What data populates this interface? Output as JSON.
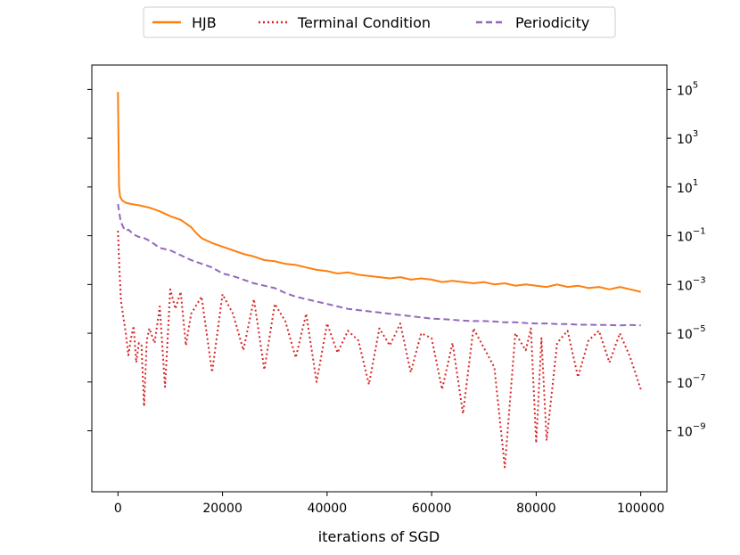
{
  "chart_data": {
    "type": "line",
    "title": "",
    "xlabel": "iterations of SGD",
    "ylabel": "",
    "xlim": [
      -5000,
      105000
    ],
    "ylim_log10": [
      -11.5,
      6.0
    ],
    "y_axis_side": "right",
    "y_scale": "log",
    "legend_position": "top-center",
    "x_ticks": [
      0,
      20000,
      40000,
      60000,
      80000,
      100000
    ],
    "x_tick_labels": [
      "0",
      "20000",
      "40000",
      "60000",
      "80000",
      "100000"
    ],
    "y_ticks": [
      {
        "base": "10",
        "exp": "5",
        "log10": 5
      },
      {
        "base": "10",
        "exp": "3",
        "log10": 3
      },
      {
        "base": "10",
        "exp": "1",
        "log10": 1
      },
      {
        "base": "10",
        "exp": "−1",
        "log10": -1
      },
      {
        "base": "10",
        "exp": "−3",
        "log10": -3
      },
      {
        "base": "10",
        "exp": "−5",
        "log10": -5
      },
      {
        "base": "10",
        "exp": "−7",
        "log10": -7
      },
      {
        "base": "10",
        "exp": "−9",
        "log10": -9
      }
    ],
    "series": [
      {
        "name": "HJB",
        "color": "#ff7f0e",
        "style": "solid",
        "x": [
          0,
          200,
          400,
          800,
          1500,
          2500,
          4000,
          6000,
          8000,
          10000,
          12000,
          14000,
          15000,
          16000,
          17000,
          18000,
          20000,
          22000,
          24000,
          26000,
          28000,
          30000,
          32000,
          34000,
          36000,
          38000,
          40000,
          42000,
          44000,
          46000,
          48000,
          50000,
          52000,
          54000,
          56000,
          58000,
          60000,
          62000,
          64000,
          66000,
          68000,
          70000,
          72000,
          74000,
          76000,
          78000,
          80000,
          82000,
          84000,
          86000,
          88000,
          90000,
          92000,
          94000,
          96000,
          98000,
          100000
        ],
        "y_log10": [
          4.9,
          1.0,
          0.6,
          0.45,
          0.35,
          0.3,
          0.25,
          0.15,
          0.0,
          -0.2,
          -0.35,
          -0.65,
          -0.9,
          -1.1,
          -1.2,
          -1.3,
          -1.45,
          -1.6,
          -1.75,
          -1.85,
          -2.0,
          -2.05,
          -2.15,
          -2.2,
          -2.3,
          -2.4,
          -2.45,
          -2.55,
          -2.5,
          -2.6,
          -2.65,
          -2.7,
          -2.75,
          -2.7,
          -2.8,
          -2.75,
          -2.8,
          -2.9,
          -2.85,
          -2.9,
          -2.95,
          -2.9,
          -3.0,
          -2.95,
          -3.05,
          -3.0,
          -3.05,
          -3.1,
          -3.0,
          -3.1,
          -3.05,
          -3.15,
          -3.1,
          -3.2,
          -3.1,
          -3.2,
          -3.3
        ]
      },
      {
        "name": "Terminal Condition",
        "color": "#d62728",
        "style": "dotted",
        "x": [
          0,
          300,
          600,
          1000,
          1500,
          2000,
          2500,
          3000,
          3500,
          4000,
          4500,
          5000,
          5500,
          6000,
          7000,
          8000,
          9000,
          10000,
          11000,
          12000,
          13000,
          14000,
          16000,
          18000,
          20000,
          22000,
          24000,
          26000,
          28000,
          30000,
          32000,
          34000,
          36000,
          38000,
          40000,
          42000,
          44000,
          46000,
          48000,
          50000,
          52000,
          54000,
          56000,
          58000,
          60000,
          62000,
          64000,
          66000,
          68000,
          70000,
          72000,
          74000,
          76000,
          78000,
          79000,
          80000,
          81000,
          82000,
          84000,
          86000,
          88000,
          90000,
          92000,
          94000,
          96000,
          98000,
          100000
        ],
        "y_log10": [
          -0.8,
          -2.5,
          -3.7,
          -4.3,
          -5.0,
          -5.9,
          -5.2,
          -4.7,
          -6.2,
          -5.4,
          -5.5,
          -8.0,
          -5.3,
          -4.8,
          -5.4,
          -3.9,
          -7.2,
          -3.2,
          -4.0,
          -3.3,
          -5.5,
          -4.2,
          -3.5,
          -6.6,
          -3.4,
          -4.2,
          -5.7,
          -3.6,
          -6.5,
          -3.8,
          -4.5,
          -6.0,
          -4.2,
          -7.0,
          -4.6,
          -5.8,
          -4.9,
          -5.3,
          -7.1,
          -4.8,
          -5.5,
          -4.6,
          -6.6,
          -5.0,
          -5.2,
          -7.3,
          -5.4,
          -8.3,
          -4.8,
          -5.6,
          -6.4,
          -10.5,
          -5.0,
          -5.7,
          -4.8,
          -9.5,
          -5.2,
          -9.4,
          -5.4,
          -4.9,
          -6.8,
          -5.3,
          -4.9,
          -6.2,
          -5.0,
          -6.0,
          -7.3
        ]
      },
      {
        "name": "Periodicity",
        "color": "#9467bd",
        "style": "dashed",
        "x": [
          0,
          500,
          1000,
          1500,
          2000,
          3000,
          4000,
          5000,
          6000,
          7000,
          8000,
          10000,
          12000,
          14000,
          16000,
          18000,
          20000,
          22000,
          24000,
          26000,
          28000,
          30000,
          32000,
          34000,
          36000,
          38000,
          40000,
          42000,
          44000,
          46000,
          48000,
          50000,
          52000,
          54000,
          56000,
          58000,
          60000,
          62000,
          64000,
          66000,
          68000,
          70000,
          72000,
          74000,
          76000,
          78000,
          80000,
          82000,
          84000,
          86000,
          88000,
          90000,
          92000,
          94000,
          96000,
          98000,
          100000
        ],
        "y_log10": [
          0.3,
          -0.4,
          -0.65,
          -0.8,
          -0.75,
          -0.95,
          -1.05,
          -1.1,
          -1.2,
          -1.35,
          -1.5,
          -1.6,
          -1.8,
          -2.0,
          -2.15,
          -2.3,
          -2.55,
          -2.65,
          -2.8,
          -2.95,
          -3.05,
          -3.15,
          -3.35,
          -3.5,
          -3.6,
          -3.7,
          -3.8,
          -3.9,
          -4.0,
          -4.05,
          -4.1,
          -4.15,
          -4.2,
          -4.25,
          -4.3,
          -4.35,
          -4.4,
          -4.42,
          -4.45,
          -4.48,
          -4.5,
          -4.5,
          -4.52,
          -4.55,
          -4.55,
          -4.58,
          -4.6,
          -4.6,
          -4.62,
          -4.62,
          -4.65,
          -4.65,
          -4.66,
          -4.66,
          -4.68,
          -4.66,
          -4.68
        ]
      }
    ]
  }
}
